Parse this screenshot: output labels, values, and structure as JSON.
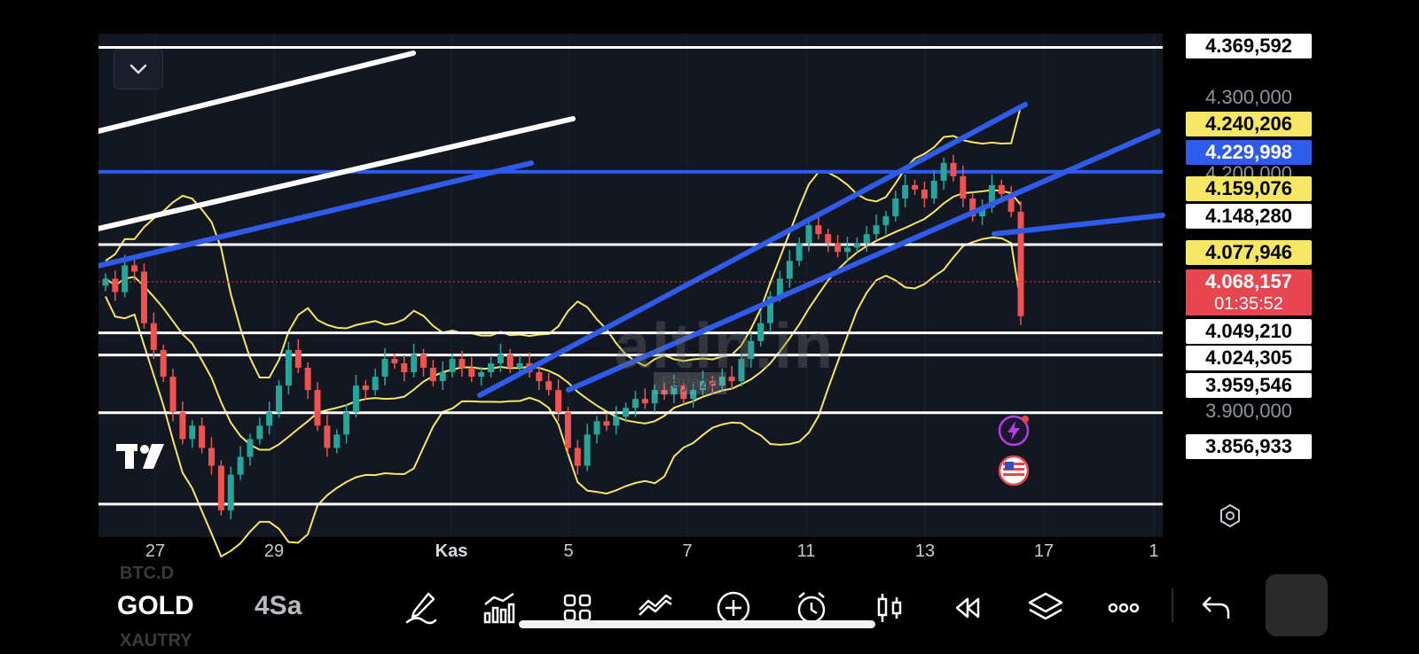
{
  "toolbar": {
    "symbol": "GOLD",
    "interval": "4Sa",
    "symbol_above": "BTC.D",
    "symbol_below": "XAUTRY",
    "tools": [
      {
        "name": "brush-icon"
      },
      {
        "name": "indicators-icon"
      },
      {
        "name": "layout-grid-icon"
      },
      {
        "name": "compare-icon"
      },
      {
        "name": "add-icon"
      },
      {
        "name": "alarm-icon"
      },
      {
        "name": "candles-icon"
      },
      {
        "name": "replay-icon"
      },
      {
        "name": "layers-icon"
      },
      {
        "name": "more-icon"
      },
      {
        "name": "undo-icon"
      }
    ]
  },
  "price_axis": {
    "scale_labels": [
      "4.300,000",
      "4.200,000",
      "3.900,000"
    ],
    "tags": [
      {
        "value": "4.369,592",
        "style": "white"
      },
      {
        "value": "4.240,206",
        "style": "yellow"
      },
      {
        "value": "4.229,998",
        "style": "blue"
      },
      {
        "value": "4.159,076",
        "style": "yellow"
      },
      {
        "value": "4.148,280",
        "style": "white"
      },
      {
        "value": "4.077,946",
        "style": "yellow"
      },
      {
        "value": "4.068,157",
        "style": "red"
      },
      {
        "value": "4.049,210",
        "style": "white"
      },
      {
        "value": "4.024,305",
        "style": "white"
      },
      {
        "value": "3.959,546",
        "style": "white"
      },
      {
        "value": "3.856,933",
        "style": "white"
      }
    ],
    "last_price": "4.068,157",
    "countdown": "01:35:52"
  },
  "time_axis": {
    "labels": [
      "27",
      "29",
      "Kas",
      "5",
      "7",
      "11",
      "13",
      "17",
      "1"
    ]
  },
  "watermark": {
    "text": "altin.in",
    "sub": "Fayaza"
  },
  "colors": {
    "background": "#131722",
    "bullish": "#26a69a",
    "bearish": "#ef5350",
    "trendline_blue": "#2f5bea",
    "bollinger": "#f5e663",
    "level_white": "#ffffff"
  },
  "chart_data": {
    "type": "candlestick",
    "symbol": "GOLD",
    "interval": "4Sa",
    "y_range": [
      3820,
      4385
    ],
    "horizontal_levels": [
      4369.592,
      4229.998,
      4148.28,
      4049.21,
      4024.305,
      3959.546,
      3856.933
    ],
    "last_price": 4068.157,
    "x_labels": [
      "27",
      "29",
      "Kas",
      "5",
      "7",
      "11",
      "13",
      "17",
      "1"
    ],
    "closes": [
      4110,
      4095,
      4125,
      4118,
      4060,
      4030,
      4000,
      3960,
      3930,
      3945,
      3920,
      3900,
      3850,
      3890,
      3910,
      3930,
      3945,
      3960,
      3990,
      4030,
      4010,
      3985,
      3945,
      3920,
      3935,
      3960,
      3990,
      3985,
      4000,
      4020,
      4015,
      4005,
      4025,
      4010,
      3995,
      4005,
      4020,
      4010,
      4000,
      4005,
      4015,
      4025,
      4010,
      4015,
      4005,
      3995,
      3985,
      3960,
      3920,
      3900,
      3935,
      3950,
      3945,
      3955,
      3965,
      3975,
      3970,
      3985,
      3980,
      3990,
      3975,
      3985,
      3995,
      3990,
      4000,
      3995,
      4020,
      4040,
      4060,
      4090,
      4110,
      4130,
      4150,
      4170,
      4160,
      4150,
      4140,
      4145,
      4150,
      4160,
      4170,
      4180,
      4200,
      4215,
      4210,
      4200,
      4220,
      4240,
      4225,
      4200,
      4180,
      4190,
      4215,
      4205,
      4185,
      4068
    ]
  }
}
